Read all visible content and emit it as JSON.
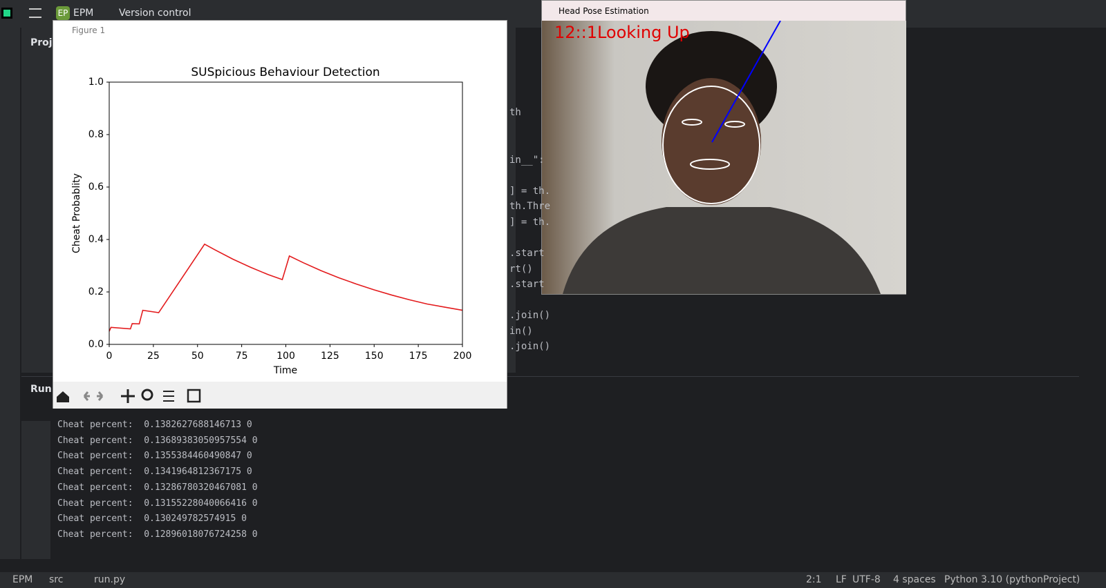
{
  "ide": {
    "badge": "EP",
    "project": "EPM",
    "vcs": "Version control",
    "panel_title": "Proje",
    "run_label": "Run",
    "code_lines": [
      "th",
      "in__\":",
      "] = th.",
      "th.Thre",
      "] = th.",
      ".start",
      "rt()",
      ".start",
      ".join()",
      "in()",
      ".join()"
    ],
    "console_lines": [
      "Cheat percent:  0.1382627688146713 0",
      "Cheat percent:  0.13689383050957554 0",
      "Cheat percent:  0.1355384460490847 0",
      "Cheat percent:  0.1341964812367175 0",
      "Cheat percent:  0.13286780320467081 0",
      "Cheat percent:  0.13155228040066416 0",
      "Cheat percent:  0.130249782574915 0",
      "Cheat percent:  0.12896018076724258 0"
    ],
    "status_path": [
      "EPM",
      "src",
      "run.py"
    ],
    "status_right": [
      "2:1",
      "LF",
      "UTF-8",
      "4 spaces",
      "Python 3.10 (pythonProject)"
    ]
  },
  "figure_window": {
    "title": "Figure 1"
  },
  "camera_window": {
    "title": "Head Pose Estimation",
    "overlay": "12::1Looking Up"
  },
  "chart_data": {
    "type": "line",
    "title": "SUSpicious Behaviour Detection",
    "x_label": "Time",
    "y_label": "Cheat Probablity",
    "x": [
      0,
      1,
      12,
      13,
      17,
      19,
      28,
      54,
      60,
      70,
      80,
      90,
      98,
      102,
      110,
      120,
      130,
      140,
      150,
      160,
      170,
      180,
      190,
      200
    ],
    "series": [
      {
        "name": "Cheat Probablity",
        "color": "#e31a1c",
        "values": [
          0.05,
          0.065,
          0.059,
          0.079,
          0.078,
          0.13,
          0.121,
          0.382,
          0.36,
          0.325,
          0.294,
          0.266,
          0.247,
          0.337,
          0.311,
          0.281,
          0.254,
          0.23,
          0.208,
          0.188,
          0.17,
          0.154,
          0.142,
          0.13
        ]
      }
    ],
    "xlim": [
      0,
      200
    ],
    "ylim": [
      0,
      1
    ],
    "xticks": [
      0,
      25,
      50,
      75,
      100,
      125,
      150,
      175,
      200
    ],
    "yticks": [
      {
        "value": 0,
        "label": "0.0"
      },
      0.2,
      0.4,
      0.6,
      0.8,
      {
        "value": 1,
        "label": "1.0"
      }
    ],
    "grid": false
  }
}
